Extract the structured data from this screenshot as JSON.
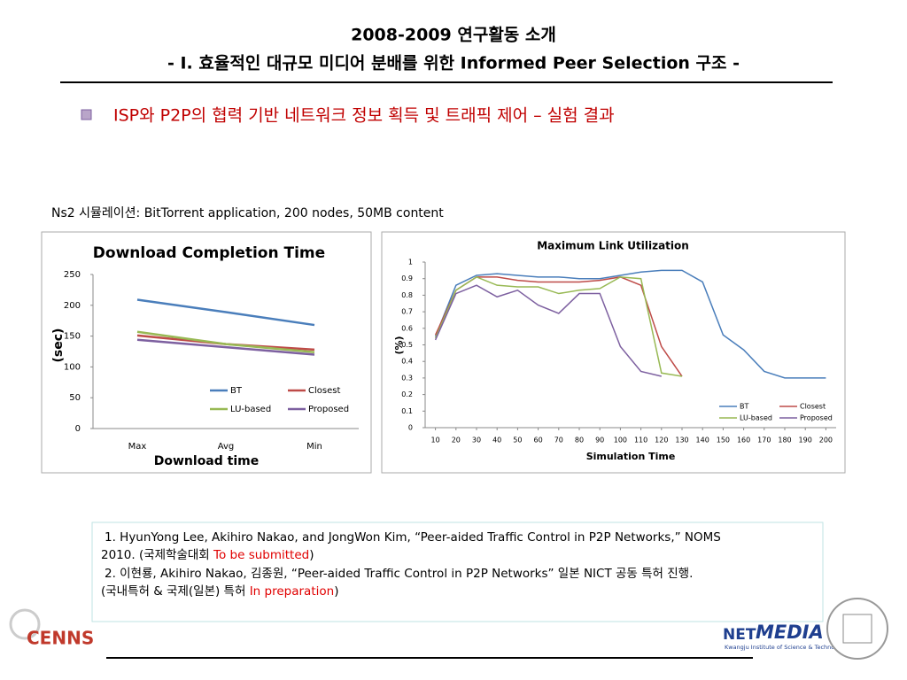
{
  "header": {
    "title": "2008-2009 연구활동 소개",
    "subtitle": "- I. 효율적인 대규모 미디어 분배를 위한 Informed Peer Selection 구조 -"
  },
  "bullet": "ISP와 P2P의 협력 기반 네트워크 정보 획득 및 트래픽 제어 – 실험 결과",
  "caption": "Ns2 시뮬레이션: BitTorrent application, 200 nodes, 50MB content",
  "chart_data": [
    {
      "type": "line",
      "title": "Download Completion Time",
      "x_label": "Download time",
      "y_label": "(sec)",
      "categories": [
        "Max",
        "Avg",
        "Min"
      ],
      "ylim": [
        0,
        250
      ],
      "yticks": [
        0,
        50,
        100,
        150,
        200,
        250
      ],
      "grid": false,
      "legend": "lower right",
      "series": [
        {
          "name": "BT",
          "color": "#4a7ebb",
          "values": [
            209,
            189,
            168
          ]
        },
        {
          "name": "Closest",
          "color": "#be4b48",
          "values": [
            151,
            137,
            128
          ]
        },
        {
          "name": "LU-based",
          "color": "#98b954",
          "values": [
            157,
            137,
            124
          ]
        },
        {
          "name": "Proposed",
          "color": "#7d60a0",
          "values": [
            144,
            132,
            120
          ]
        }
      ]
    },
    {
      "type": "line",
      "title": "Maximum Link Utilization",
      "x_label": "Simulation Time",
      "y_label": "(%)",
      "x": [
        10,
        20,
        30,
        40,
        50,
        60,
        70,
        80,
        90,
        100,
        110,
        120,
        130,
        140,
        150,
        160,
        170,
        180,
        190,
        200
      ],
      "xlim": [
        5,
        205
      ],
      "xticks": [
        10,
        20,
        30,
        40,
        50,
        60,
        70,
        80,
        90,
        100,
        110,
        120,
        130,
        140,
        150,
        160,
        170,
        180,
        190,
        200
      ],
      "ylim": [
        0,
        1
      ],
      "yticks": [
        0,
        0.1,
        0.2,
        0.3,
        0.4,
        0.5,
        0.6,
        0.7,
        0.8,
        0.9,
        1
      ],
      "grid": false,
      "legend": "lower right",
      "series": [
        {
          "name": "BT",
          "color": "#4a7ebb",
          "values": [
            0.55,
            0.86,
            0.92,
            0.93,
            0.92,
            0.91,
            0.91,
            0.9,
            0.9,
            0.92,
            0.94,
            0.95,
            0.95,
            0.88,
            0.56,
            0.47,
            0.34,
            0.3,
            0.3,
            0.3
          ]
        },
        {
          "name": "Closest",
          "color": "#be4b48",
          "values": [
            0.56,
            0.83,
            0.91,
            0.91,
            0.89,
            0.88,
            0.88,
            0.88,
            0.89,
            0.91,
            0.86,
            0.49,
            0.31,
            null,
            null,
            null,
            null,
            null,
            null,
            null
          ]
        },
        {
          "name": "LU-based",
          "color": "#98b954",
          "values": [
            0.54,
            0.83,
            0.91,
            0.86,
            0.85,
            0.85,
            0.81,
            0.83,
            0.84,
            0.91,
            0.9,
            0.33,
            0.31,
            null,
            null,
            null,
            null,
            null,
            null,
            null
          ]
        },
        {
          "name": "Proposed",
          "color": "#7d60a0",
          "values": [
            0.53,
            0.81,
            0.86,
            0.79,
            0.83,
            0.74,
            0.69,
            0.81,
            0.81,
            0.49,
            0.34,
            0.31,
            null,
            null,
            null,
            null,
            null,
            null,
            null,
            null
          ]
        }
      ]
    }
  ],
  "references": [
    [
      "1. HyunYong Lee, Akihiro Nakao, and JongWon Kim, “Peer-aided Traffic Control in P2P Networks,” NOMS",
      "2010.  (국제학술대회 ",
      "To be submitted",
      ")"
    ],
    [
      "2. 이현룡, Akihiro Nakao, 김종원, “Peer-aided Traffic Control in P2P Networks”  일본 NICT 공동 특허 진행.",
      "(국내특허 & 국제(일본) 특허 ",
      "In preparation",
      ")"
    ]
  ],
  "logos": {
    "left": "CENNS",
    "right_net": "NET",
    "right_media": "MEDIA",
    "right_sub": "Kwangju Institute of Science & Technology"
  }
}
